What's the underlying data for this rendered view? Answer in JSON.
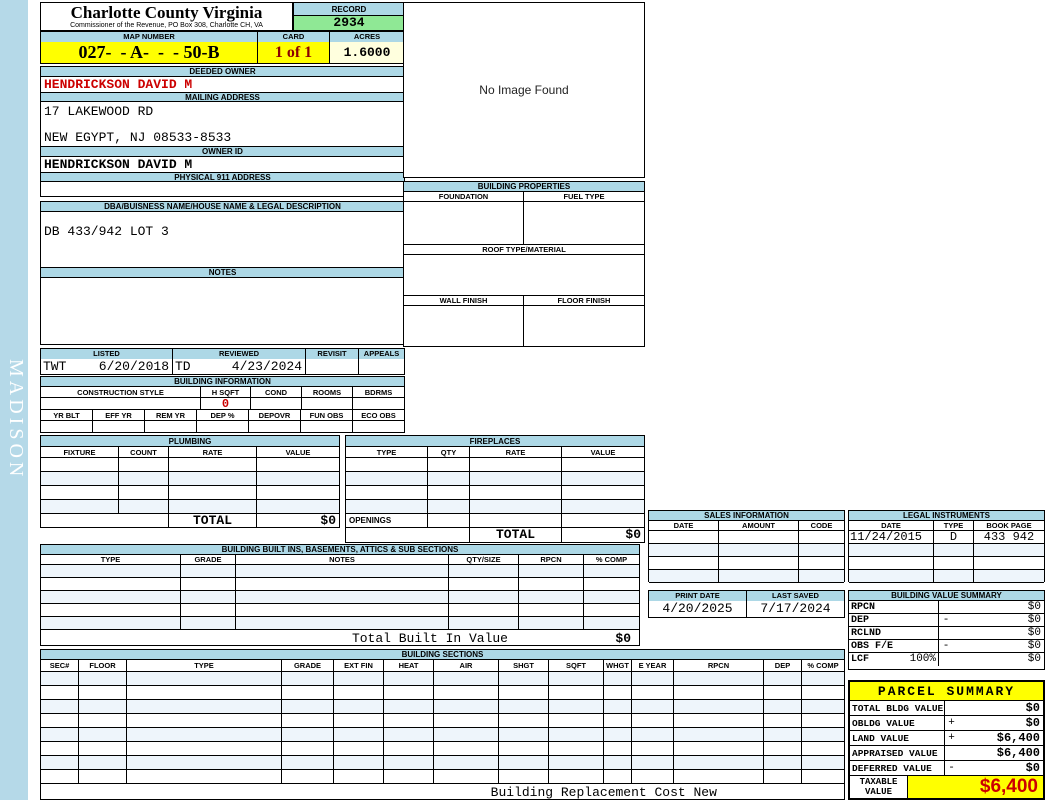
{
  "colors": {
    "header_blue": "#ADD8E6",
    "highlight_yellow": "#FFFF00",
    "pale_yellow": "#FFFFDE",
    "record_green": "#8FE895",
    "alert_red": "#CC0000",
    "card_maroon": "#8B0000",
    "sidebar_blue": "#B5D9E8"
  },
  "sidebar": {
    "watermark": "MADISON"
  },
  "header": {
    "county": "Charlotte County Virginia",
    "commissioner": "Commissioner of the Revenue, PO Box 308, Charlotte CH, VA",
    "record_label": "RECORD",
    "record_number": "2934",
    "map_number_label": "MAP NUMBER",
    "map_number": "027-  - A-  -  - 50-B",
    "card_label": "CARD",
    "card": "1 of 1",
    "acres_label": "ACRES",
    "acres": "1.6000"
  },
  "owner": {
    "deeded_owner_label": "DEEDED OWNER",
    "deeded_owner": "HENDRICKSON DAVID M",
    "mailing_address_label": "MAILING ADDRESS",
    "mailing_line1": "17 LAKEWOOD RD",
    "mailing_line2": "NEW EGYPT, NJ 08533-8533",
    "owner_id_label": "OWNER ID",
    "owner_id": "HENDRICKSON DAVID M",
    "physical_911_label": "PHYSICAL 911 ADDRESS",
    "physical_911": ""
  },
  "dba": {
    "label": "DBA/BUISNESS NAME/HOUSE NAME & LEGAL DESCRIPTION",
    "legal_description": "DB 433/942 LOT 3",
    "notes_label": "NOTES",
    "notes": ""
  },
  "review": {
    "listed_label": "LISTED",
    "listed_by": "TWT",
    "listed_date": "6/20/2018",
    "reviewed_label": "REVIEWED",
    "reviewed_by": "TD",
    "reviewed_date": "4/23/2024",
    "revisit_label": "REVISIT",
    "revisit": "",
    "appeals_label": "APPEALS",
    "appeals": ""
  },
  "building_information": {
    "title": "BUILDING INFORMATION",
    "row1_headers": [
      "CONSTRUCTION STYLE",
      "H SQFT",
      "COND",
      "ROOMS",
      "BDRMS"
    ],
    "h_sqft": "0",
    "row2_headers": [
      "YR BLT",
      "EFF YR",
      "REM YR",
      "DEP %",
      "DEPOVR",
      "FUN OBS",
      "ECO OBS"
    ]
  },
  "image_panel": {
    "placeholder": "No Image Found"
  },
  "building_properties": {
    "title": "BUILDING PROPERTIES",
    "foundation_label": "FOUNDATION",
    "fuel_type_label": "FUEL TYPE",
    "roof_label": "ROOF TYPE/MATERIAL",
    "wall_finish_label": "WALL FINISH",
    "floor_finish_label": "FLOOR FINISH"
  },
  "plumbing": {
    "title": "PLUMBING",
    "headers": [
      "FIXTURE",
      "COUNT",
      "RATE",
      "VALUE"
    ],
    "total_label": "TOTAL",
    "total_value": "$0"
  },
  "fireplaces": {
    "title": "FIREPLACES",
    "headers": [
      "TYPE",
      "QTY",
      "RATE",
      "VALUE"
    ],
    "openings_label": "OPENINGS",
    "total_label": "TOTAL",
    "total_value": "$0"
  },
  "built_ins": {
    "title": "BUILDING BUILT INS, BASEMENTS, ATTICS & SUB SECTIONS",
    "headers": [
      "TYPE",
      "GRADE",
      "NOTES",
      "QTY/SIZE",
      "RPCN",
      "% COMP"
    ],
    "total_label": "Total Built In Value",
    "total_value": "$0"
  },
  "sales_information": {
    "title": "SALES INFORMATION",
    "headers": [
      "DATE",
      "AMOUNT",
      "CODE"
    ]
  },
  "legal_instruments": {
    "title": "LEGAL INSTRUMENTS",
    "headers": [
      "DATE",
      "TYPE",
      "BOOK PAGE"
    ],
    "rows": [
      {
        "date": "11/24/2015",
        "type": "D",
        "book_page": "433 942"
      }
    ]
  },
  "print_info": {
    "print_date_label": "PRINT DATE",
    "print_date": "4/20/2025",
    "last_saved_label": "LAST SAVED",
    "last_saved": "7/17/2024"
  },
  "building_value_summary": {
    "title": "BUILDING VALUE SUMMARY",
    "rows": [
      {
        "label": "RPCN",
        "op": "",
        "value": "$0"
      },
      {
        "label": "DEP",
        "op": "-",
        "value": "$0"
      },
      {
        "label": "RCLND",
        "op": "",
        "value": "$0"
      },
      {
        "label": "OBS F/E",
        "op": "-",
        "value": "$0"
      },
      {
        "label": "LCF",
        "pct": "100%",
        "op": "",
        "value": "$0"
      }
    ]
  },
  "building_sections": {
    "title": "BUILDING SECTIONS",
    "headers": [
      "SEC#",
      "FLOOR",
      "TYPE",
      "GRADE",
      "EXT FIN",
      "HEAT",
      "AIR",
      "SHGT",
      "SQFT",
      "WHGT",
      "E YEAR",
      "RPCN",
      "DEP",
      "% COMP"
    ],
    "footer_label": "Building Replacement Cost New"
  },
  "parcel_summary": {
    "title": "PARCEL SUMMARY",
    "rows": [
      {
        "label": "TOTAL BLDG VALUE",
        "op": "",
        "value": "$0"
      },
      {
        "label": "OBLDG VALUE",
        "op": "+",
        "value": "$0"
      },
      {
        "label": "LAND VALUE",
        "op": "+",
        "value": "$6,400"
      },
      {
        "label": "APPRAISED VALUE",
        "op": "",
        "value": "$6,400"
      },
      {
        "label": "DEFERRED VALUE",
        "op": "-",
        "value": "$0"
      }
    ],
    "taxable_label_line1": "TAXABLE",
    "taxable_label_line2": "VALUE",
    "taxable_value": "$6,400"
  }
}
